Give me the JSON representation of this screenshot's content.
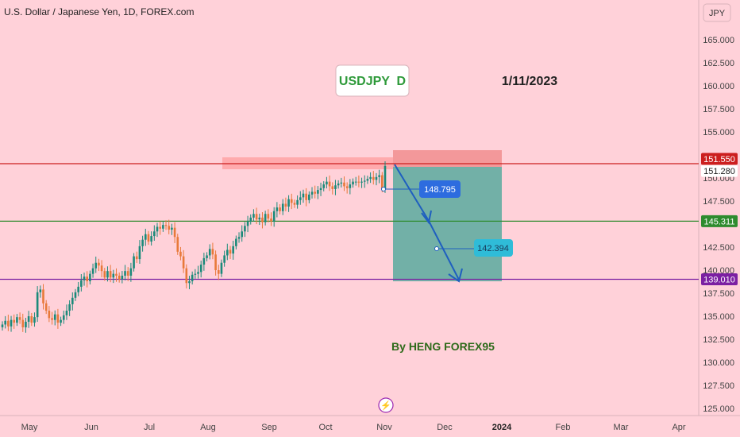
{
  "header": {
    "symbol_title": "U.S. Dollar / Japanese Yen, 1D, FOREX.com"
  },
  "currency_button": "JPY",
  "annotations": {
    "symbol_badge": "USDJPY  D",
    "date": "1/11/2023",
    "author": "By HENG FOREX95",
    "entry_label": "148.795",
    "target_label": "142.394"
  },
  "price_tags": {
    "resistance": "151.550",
    "current": "151.280",
    "support1": "145.311",
    "support2": "139.010"
  },
  "colors": {
    "background": "#ffd1d9",
    "resistance_line": "#cc1f1f",
    "support1_line": "#2e8b2e",
    "support2_line": "#7b1fa2",
    "up_candle": "#1b8a7a",
    "down_candle": "#e8793a",
    "arrow": "#1f5fbf",
    "target_zone": "#4fa89a",
    "stop_zone": "#f08a8a"
  },
  "chart_data": {
    "type": "candlestick",
    "title": "U.S. Dollar / Japanese Yen, 1D, FOREX.com",
    "x_ticks": [
      "May",
      "Jun",
      "Jul",
      "Aug",
      "Sep",
      "Oct",
      "Nov",
      "Dec",
      "2024",
      "Feb",
      "Mar",
      "Apr"
    ],
    "y_ticks": [
      "165.000",
      "162.500",
      "160.000",
      "157.500",
      "155.000",
      "150.000",
      "147.500",
      "142.500",
      "140.000",
      "137.500",
      "135.000",
      "132.500",
      "130.000",
      "127.500",
      "125.000"
    ],
    "ylim": [
      124.5,
      167.0
    ],
    "horizontal_levels": [
      151.55,
      145.311,
      139.01
    ],
    "current_price": 151.28,
    "grid": false,
    "series": [
      {
        "name": "USDJPY",
        "closes": [
          134.1,
          134.5,
          133.9,
          134.6,
          134.3,
          134.9,
          134.6,
          133.8,
          134.4,
          135.0,
          134.3,
          134.9,
          137.6,
          137.9,
          136.4,
          135.6,
          134.8,
          134.6,
          135.2,
          134.3,
          134.6,
          135.1,
          135.6,
          136.3,
          137.0,
          137.6,
          138.2,
          138.9,
          139.3,
          138.8,
          139.6,
          140.2,
          140.8,
          140.5,
          139.9,
          139.2,
          139.9,
          139.2,
          139.6,
          139.4,
          139.0,
          139.4,
          139.9,
          139.4,
          140.2,
          141.5,
          141.2,
          142.6,
          143.3,
          143.9,
          143.1,
          143.7,
          144.2,
          144.7,
          144.5,
          144.9,
          144.8,
          144.4,
          144.6,
          143.6,
          142.0,
          141.5,
          140.2,
          138.6,
          138.8,
          139.5,
          139.6,
          139.8,
          140.6,
          141.3,
          141.6,
          142.3,
          141.7,
          140.0,
          139.6,
          140.8,
          141.6,
          142.2,
          141.8,
          142.6,
          143.4,
          143.6,
          144.2,
          144.8,
          145.3,
          145.7,
          146.1,
          145.5,
          145.7,
          145.2,
          146.1,
          145.6,
          145.3,
          146.4,
          146.8,
          146.4,
          147.2,
          146.9,
          147.7,
          147.3,
          147.1,
          147.6,
          147.9,
          148.3,
          147.6,
          148.2,
          148.5,
          148.3,
          148.7,
          148.9,
          149.3,
          149.6,
          149.1,
          148.8,
          149.2,
          149.4,
          149.5,
          149.1,
          148.9,
          149.3,
          149.6,
          149.6,
          149.5,
          149.6,
          149.7,
          149.9,
          150.1,
          149.8,
          150.1,
          150.3,
          148.8,
          151.3
        ]
      }
    ]
  }
}
